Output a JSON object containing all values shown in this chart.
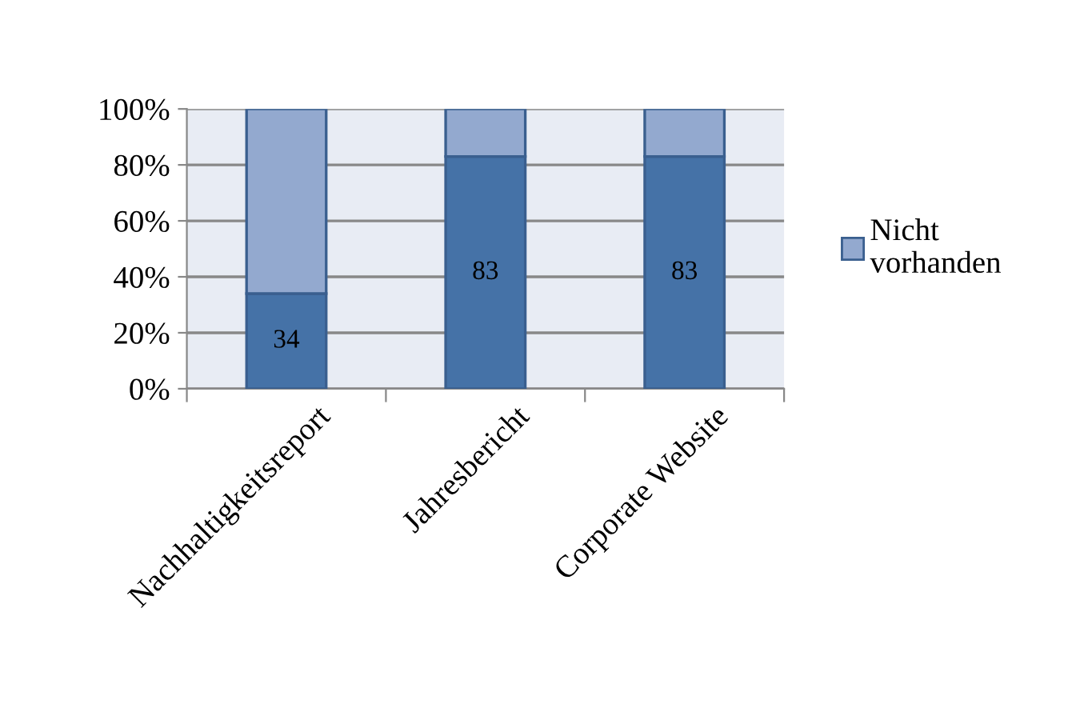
{
  "chart_data": {
    "type": "bar",
    "stacked": true,
    "categories": [
      "Nachhaltigkeitsreport",
      "Jahresbericht",
      "Corporate Website"
    ],
    "series": [
      {
        "color": "#4572a7",
        "values": [
          34,
          83,
          83
        ],
        "value_labels": [
          "34",
          "83",
          "83"
        ]
      },
      {
        "name": "Nicht vorhanden",
        "color": "#93a9cf",
        "values": [
          66,
          17,
          17
        ]
      }
    ],
    "ylim": [
      0,
      100
    ],
    "yticks": [
      {
        "value": 0,
        "label": "0%"
      },
      {
        "value": 20,
        "label": "20%"
      },
      {
        "value": 40,
        "label": "40%"
      },
      {
        "value": 60,
        "label": "60%"
      },
      {
        "value": 80,
        "label": "80%"
      },
      {
        "value": 100,
        "label": "100%"
      }
    ],
    "grid": "y",
    "legend": "right"
  }
}
